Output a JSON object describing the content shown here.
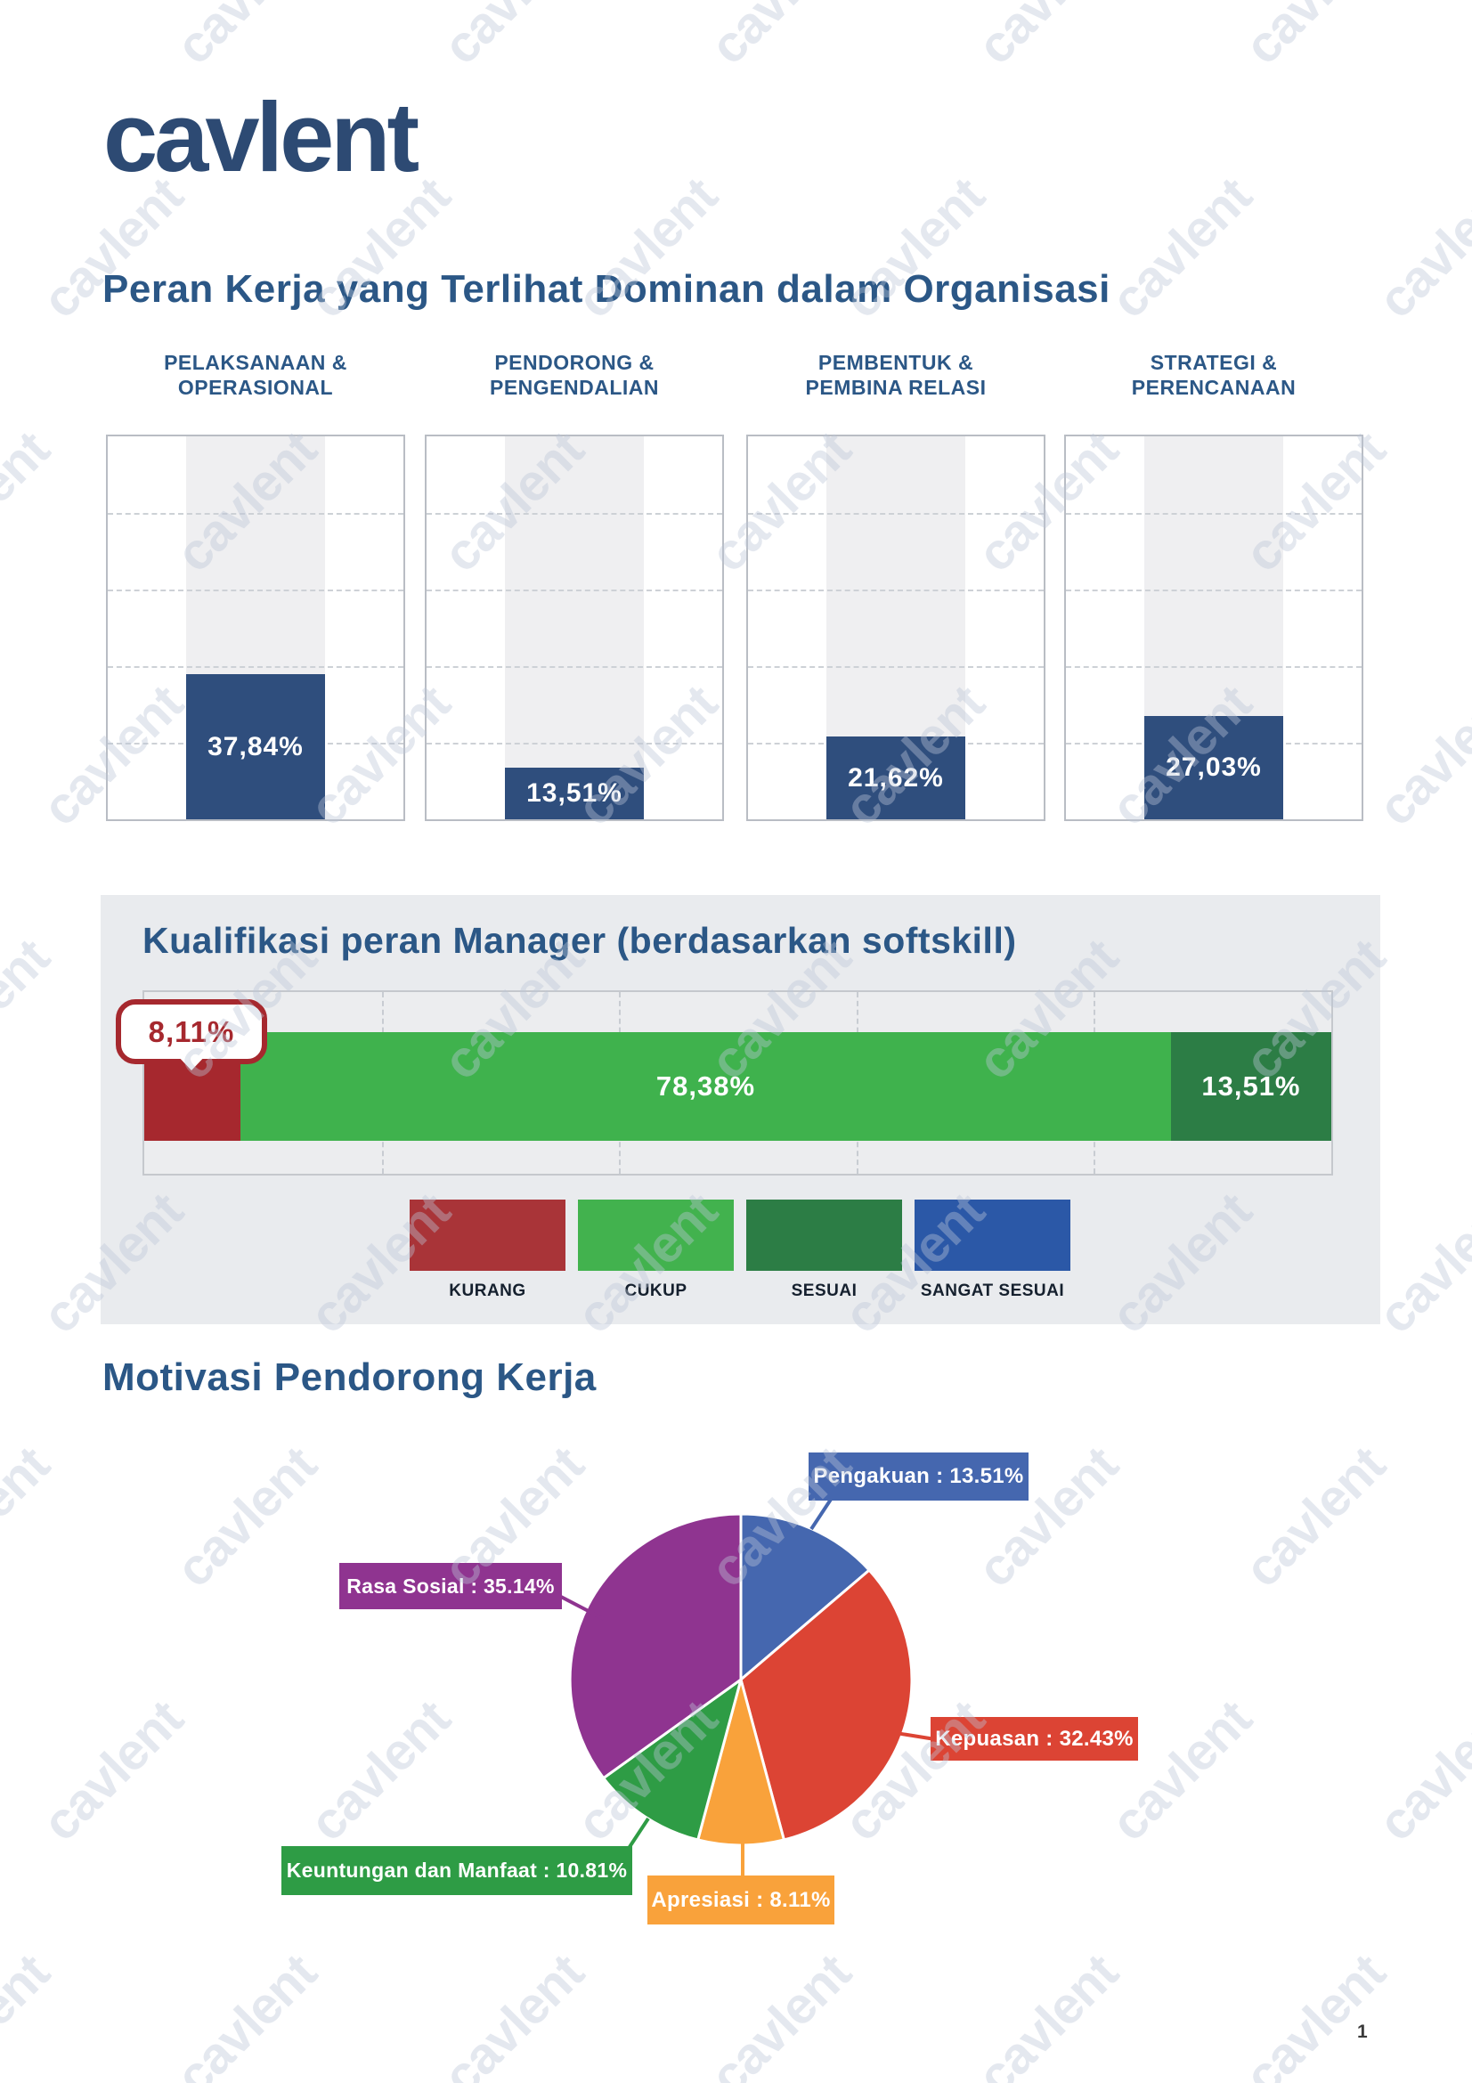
{
  "brand": {
    "logo_text": "cavlent",
    "watermark_text": "cavlent"
  },
  "page": {
    "number": "1"
  },
  "colors": {
    "heading_navy": "#2b5786",
    "bar_navy": "#2f4e7d",
    "section_bg": "#e9ebee",
    "kurang_red": "#a6282e",
    "cukup_green": "#3fb24d",
    "sesuai_green": "#2c7d45",
    "sangat_sesuai_blue": "#2b58a7"
  },
  "chart_data": [
    {
      "type": "bar",
      "title": "Peran Kerja yang Terlihat Dominan dalam Organisasi",
      "categories": [
        "PELAKSANAAN & OPERASIONAL",
        "PENDORONG & PENGENDALIAN",
        "PEMBENTUK & PEMBINA RELASI",
        "STRATEGI & PERENCANAAN"
      ],
      "category_lines": [
        [
          "PELAKSANAAN &",
          "OPERASIONAL"
        ],
        [
          "PENDORONG &",
          "PENGENDALIAN"
        ],
        [
          "PEMBENTUK &",
          "PEMBINA RELASI"
        ],
        [
          "STRATEGI &",
          "PERENCANAAN"
        ]
      ],
      "values": [
        37.84,
        13.51,
        21.62,
        27.03
      ],
      "value_labels": [
        "37,84%",
        "13,51%",
        "21,62%",
        "27,03%"
      ],
      "ylim": [
        0,
        100
      ],
      "gridlines_pct": [
        20,
        40,
        60,
        80
      ],
      "bar_color": "#2f4e7d",
      "xlabel": "",
      "ylabel": ""
    },
    {
      "type": "stacked-bar",
      "title": "Kualifikasi peran Manager (berdasarkan softskill)",
      "segments": [
        {
          "label": "KURANG",
          "value": 8.11,
          "display": "8,11%",
          "color": "#a6282e"
        },
        {
          "label": "CUKUP",
          "value": 78.38,
          "display": "78,38%",
          "color": "#3fb24d"
        },
        {
          "label": "SESUAI",
          "value": 13.51,
          "display": "13,51%",
          "color": "#2c7d45"
        }
      ],
      "callout_display": "8,11%",
      "legend": [
        {
          "label": "KURANG",
          "color": "#a93438"
        },
        {
          "label": "CUKUP",
          "color": "#42b24e"
        },
        {
          "label": "SESUAI",
          "color": "#2c7d45"
        },
        {
          "label": "SANGAT SESUAI",
          "color": "#2b58a7"
        }
      ],
      "xlim": [
        0,
        100
      ],
      "gridlines_pct": [
        20,
        40,
        60,
        80
      ]
    },
    {
      "type": "pie",
      "title": "Motivasi Pendorong Kerja",
      "slices": [
        {
          "label": "Pengakuan",
          "value": 13.51,
          "display": "Pengakuan : 13.51%",
          "color": "#4567af"
        },
        {
          "label": "Kepuasan",
          "value": 32.43,
          "display": "Kepuasan : 32.43%",
          "color": "#dc4434"
        },
        {
          "label": "Apresiasi",
          "value": 8.11,
          "display": "Apresiasi : 8.11%",
          "color": "#f9a23b"
        },
        {
          "label": "Keuntungan dan Manfaat",
          "value": 10.81,
          "display": "Keuntungan dan Manfaat : 10.81%",
          "color": "#2e9c45"
        },
        {
          "label": "Rasa Sosial",
          "value": 35.14,
          "display": "Rasa Sosial : 35.14%",
          "color": "#8f3490"
        }
      ],
      "start_angle_deg": 0,
      "direction": "clockwise",
      "legend_position": "callout-labels"
    }
  ]
}
